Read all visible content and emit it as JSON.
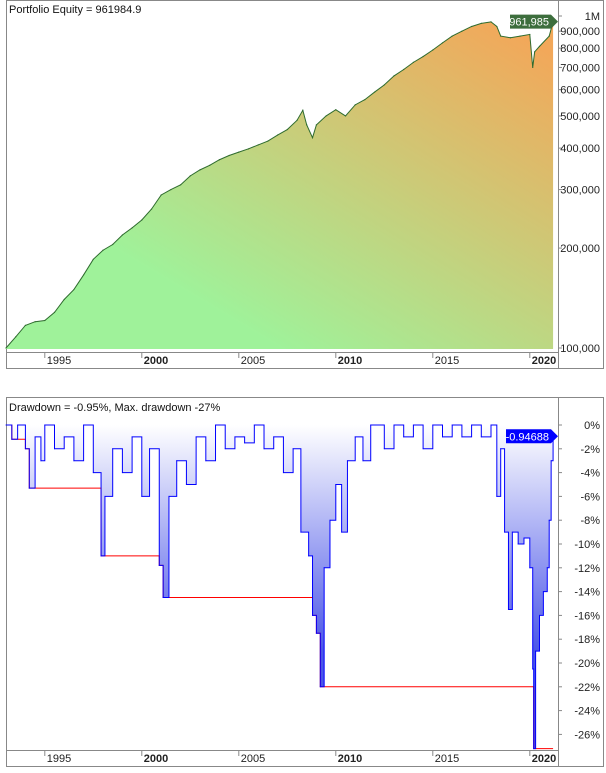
{
  "chart_data": [
    {
      "type": "area",
      "title": "Portfolio Equity = 961984.9",
      "last_value_label": "961,985",
      "y_scale": "log",
      "ylim": [
        100000,
        1000000
      ],
      "y_ticks": [
        {
          "v": 100000,
          "label": "100,000"
        },
        {
          "v": 200000,
          "label": "200,000"
        },
        {
          "v": 300000,
          "label": "300,000"
        },
        {
          "v": 400000,
          "label": "400,000"
        },
        {
          "v": 500000,
          "label": "500,000"
        },
        {
          "v": 600000,
          "label": "600,000"
        },
        {
          "v": 700000,
          "label": "700,000"
        },
        {
          "v": 800000,
          "label": "800,000"
        },
        {
          "v": 900000,
          "label": "900,000"
        },
        {
          "v": 1000000,
          "label": "1M"
        }
      ],
      "x_ticks": [
        {
          "v": 1995,
          "label": "1995",
          "bold": false
        },
        {
          "v": 2000,
          "label": "2000",
          "bold": true
        },
        {
          "v": 2005,
          "label": "2005",
          "bold": false
        },
        {
          "v": 2010,
          "label": "2010",
          "bold": true
        },
        {
          "v": 2015,
          "label": "2015",
          "bold": false
        },
        {
          "v": 2020,
          "label": "2020",
          "bold": true
        }
      ],
      "xlim": [
        1993,
        2021.2
      ],
      "colors": {
        "line": "#2e6b2e",
        "fill_low": "#9ff29a",
        "fill_high": "#f2a85a",
        "badge": "#3d6e3d"
      },
      "x": [
        1993.0,
        1993.5,
        1994.0,
        1994.5,
        1995.0,
        1995.5,
        1996.0,
        1996.5,
        1997.0,
        1997.5,
        1998.0,
        1998.5,
        1999.0,
        1999.5,
        2000.0,
        2000.5,
        2001.0,
        2001.5,
        2002.0,
        2002.5,
        2003.0,
        2003.5,
        2004.0,
        2004.5,
        2005.0,
        2005.5,
        2006.0,
        2006.5,
        2007.0,
        2007.5,
        2008.0,
        2008.3,
        2008.5,
        2008.8,
        2009.0,
        2009.5,
        2010.0,
        2010.5,
        2011.0,
        2011.5,
        2012.0,
        2012.5,
        2013.0,
        2013.5,
        2014.0,
        2014.5,
        2015.0,
        2015.5,
        2016.0,
        2016.5,
        2017.0,
        2017.5,
        2018.0,
        2018.3,
        2018.5,
        2019.0,
        2019.5,
        2020.0,
        2020.15,
        2020.25,
        2020.5,
        2021.0,
        2021.2
      ],
      "values": [
        100000,
        108000,
        117000,
        120000,
        121000,
        128000,
        140000,
        150000,
        166000,
        185000,
        197000,
        205000,
        219000,
        230000,
        243000,
        262000,
        289000,
        300000,
        310000,
        330000,
        344000,
        355000,
        369000,
        380000,
        389000,
        398000,
        409000,
        420000,
        438000,
        455000,
        485000,
        520000,
        470000,
        430000,
        470000,
        500000,
        522000,
        500000,
        540000,
        560000,
        590000,
        620000,
        660000,
        690000,
        725000,
        755000,
        790000,
        830000,
        870000,
        900000,
        930000,
        950000,
        960000,
        930000,
        870000,
        860000,
        870000,
        880000,
        700000,
        780000,
        810000,
        870000,
        961985
      ]
    },
    {
      "type": "line",
      "title": "Drawdown = -0.95%, Max. drawdown -27%",
      "last_value_label": "-0.94688",
      "ylim": [
        -28,
        1
      ],
      "y_ticks": [
        0,
        -2,
        -4,
        -6,
        -8,
        -10,
        -12,
        -14,
        -16,
        -18,
        -20,
        -22,
        -24,
        -26
      ],
      "y_tick_labels": [
        "0%",
        "-2%",
        "-4%",
        "-6%",
        "-8%",
        "-10%",
        "-12%",
        "-14%",
        "-16%",
        "-18%",
        "-20%",
        "-22%",
        "-24%",
        "-26%"
      ],
      "xlim": [
        1993,
        2021.2
      ],
      "colors": {
        "drawdown": "#0000ff",
        "max_drawdown": "#ff0000",
        "fill_top": "#ffffff",
        "fill_bottom": "#4a55e8"
      },
      "series": [
        {
          "name": "Drawdown",
          "x": [
            1993.0,
            1993.3,
            1993.6,
            1994.0,
            1994.2,
            1994.5,
            1994.8,
            1995.0,
            1995.5,
            1996.0,
            1996.5,
            1997.0,
            1997.5,
            1997.9,
            1998.1,
            1998.5,
            1999.0,
            1999.5,
            2000.0,
            2000.4,
            2000.9,
            2001.1,
            2001.4,
            2001.8,
            2002.3,
            2002.8,
            2003.3,
            2003.8,
            2004.3,
            2004.8,
            2005.3,
            2005.8,
            2006.3,
            2006.8,
            2007.3,
            2007.8,
            2008.2,
            2008.6,
            2008.8,
            2009.0,
            2009.2,
            2009.4,
            2009.7,
            2010.0,
            2010.3,
            2010.6,
            2011.0,
            2011.4,
            2011.8,
            2012.5,
            2013.0,
            2013.5,
            2014.0,
            2014.5,
            2015.0,
            2015.5,
            2016.0,
            2016.5,
            2017.0,
            2017.5,
            2018.0,
            2018.3,
            2018.5,
            2018.7,
            2018.9,
            2019.1,
            2019.4,
            2019.7,
            2020.0,
            2020.15,
            2020.2,
            2020.3,
            2020.5,
            2020.7,
            2020.9,
            2021.0,
            2021.1,
            2021.2
          ],
          "values": [
            0,
            -1.2,
            0,
            -2,
            -5.3,
            -1,
            -3,
            0,
            -2,
            -1,
            -3,
            0,
            -4,
            -11,
            -6,
            -2,
            -4,
            -1,
            -6,
            -2,
            -11.8,
            -14.5,
            -6,
            -3,
            -5,
            -1,
            -3,
            0,
            -2,
            -1,
            -1.5,
            0,
            -2,
            -1,
            -4,
            -2,
            -9,
            -11,
            -16,
            -17.5,
            -22,
            -12,
            -8,
            -5,
            -9,
            -3,
            -1,
            -3,
            0,
            -2,
            0,
            -1,
            0,
            -2,
            0,
            -1,
            0,
            -1,
            0,
            -1,
            0,
            -6,
            -2,
            -9,
            -15.5,
            -9,
            -10,
            -9.5,
            -12,
            -20.5,
            -27.2,
            -19,
            -16,
            -14,
            -12,
            -8,
            -3,
            -0.95
          ]
        },
        {
          "name": "Max. drawdown"
        }
      ],
      "x_ticks": [
        {
          "v": 1995,
          "label": "1995",
          "bold": false
        },
        {
          "v": 2000,
          "label": "2000",
          "bold": true
        },
        {
          "v": 2005,
          "label": "2005",
          "bold": false
        },
        {
          "v": 2010,
          "label": "2010",
          "bold": true
        },
        {
          "v": 2015,
          "label": "2015",
          "bold": false
        },
        {
          "v": 2020,
          "label": "2020",
          "bold": true
        }
      ]
    }
  ]
}
